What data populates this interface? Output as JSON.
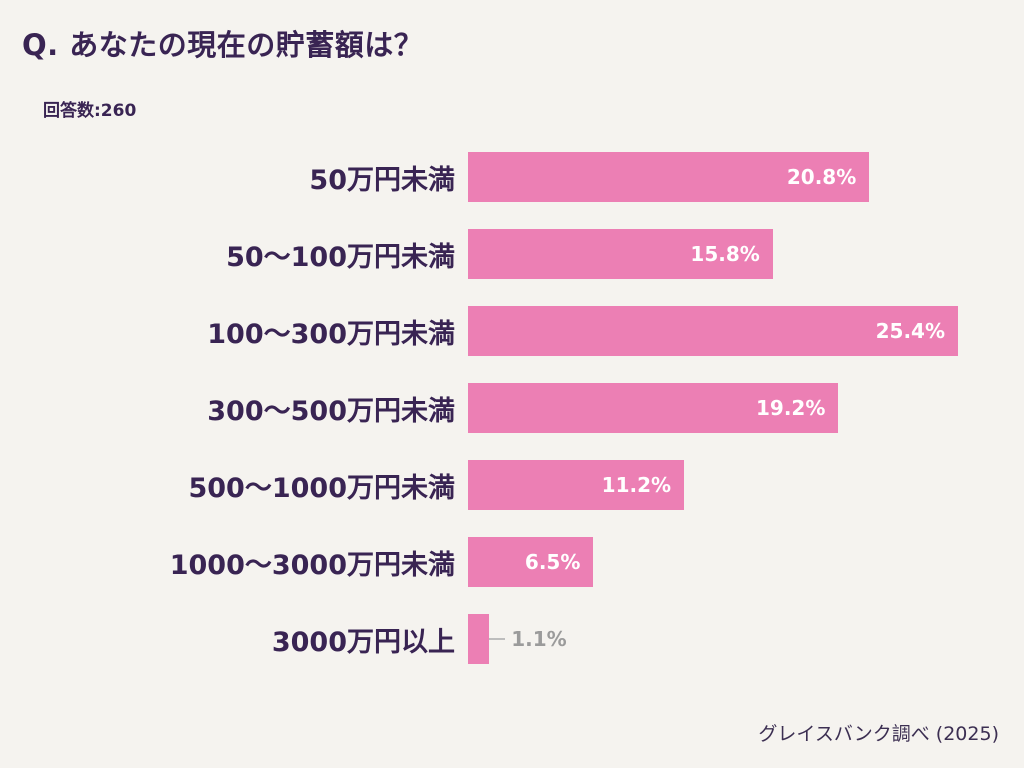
{
  "header": {
    "title": "Q. あなたの現在の貯蓄額は？",
    "respondents": "回答数:260"
  },
  "footer": {
    "source": "グレイスバンク調べ (2025)"
  },
  "colors": {
    "background": "#f5f3ef",
    "title_text": "#392453",
    "category_text": "#392453",
    "bar": "#ec7fb4",
    "value_inside": "#ffffff",
    "value_outside": "#9b9b9b"
  },
  "chart_data": {
    "type": "bar",
    "orientation": "horizontal",
    "title": "Q. あなたの現在の貯蓄額は？",
    "subtitle": "回答数:260",
    "categories": [
      "50万円未満",
      "50〜100万円未満",
      "100〜300万円未満",
      "300〜500万円未満",
      "500〜1000万円未満",
      "1000〜3000万円未満",
      "3000万円以上"
    ],
    "values": [
      20.8,
      15.8,
      25.4,
      19.2,
      11.2,
      6.5,
      1.1
    ],
    "value_labels": [
      "20.8%",
      "15.8%",
      "25.4%",
      "19.2%",
      "11.2%",
      "6.5%",
      "1.1%"
    ],
    "xlim": [
      0,
      25.4
    ],
    "xlabel": "",
    "ylabel": "",
    "grid": false,
    "legend": false,
    "bar_color": "#ec7fb4",
    "source": "グレイスバンク調べ (2025)"
  }
}
